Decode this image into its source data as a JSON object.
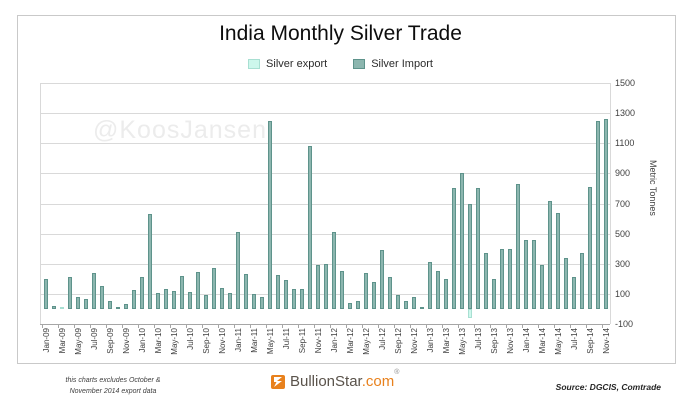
{
  "title": "India Monthly Silver Trade",
  "watermark": "@KoosJansen",
  "legend": {
    "export_label": "Silver export",
    "import_label": "Silver Import"
  },
  "y_axis": {
    "title": "Metric Tonnes",
    "ticks": [
      1500,
      1300,
      1100,
      900,
      700,
      500,
      300,
      100,
      -100
    ]
  },
  "footer": {
    "note_line1": "this charts excludes October &",
    "note_line2": "November 2014 export data",
    "logo_text": "BullionStar",
    "logo_suffix": ".com",
    "logo_reg": "®",
    "source": "Source: DGCIS, Comtrade"
  },
  "colors": {
    "export_fill": "#cdf7ec",
    "export_edge": "#a8dfd2",
    "import_fill": "#8cb6af",
    "import_edge": "#5e938b",
    "gridline": "#d9d9d9",
    "axis": "#a6a6a6",
    "logo_orange": "#e8811d"
  },
  "chart_data": {
    "type": "bar",
    "title": "India Monthly Silver Trade",
    "ylabel": "Metric Tonnes",
    "ylim": [
      -100,
      1500
    ],
    "grid": true,
    "legend_position": "top",
    "x_tick_interval": 2,
    "categories": [
      "Jan-09",
      "Feb-09",
      "Mar-09",
      "Apr-09",
      "May-09",
      "Jun-09",
      "Jul-09",
      "Aug-09",
      "Sep-09",
      "Oct-09",
      "Nov-09",
      "Dec-09",
      "Jan-10",
      "Feb-10",
      "Mar-10",
      "Apr-10",
      "May-10",
      "Jun-10",
      "Jul-10",
      "Aug-10",
      "Sep-10",
      "Oct-10",
      "Nov-10",
      "Dec-10",
      "Jan-11",
      "Feb-11",
      "Mar-11",
      "Apr-11",
      "May-11",
      "Jun-11",
      "Jul-11",
      "Aug-11",
      "Sep-11",
      "Oct-11",
      "Nov-11",
      "Dec-11",
      "Jan-12",
      "Feb-12",
      "Mar-12",
      "Apr-12",
      "May-12",
      "Jun-12",
      "Jul-12",
      "Aug-12",
      "Sep-12",
      "Oct-12",
      "Nov-12",
      "Dec-12",
      "Jan-13",
      "Feb-13",
      "Mar-13",
      "Apr-13",
      "May-13",
      "Jun-13",
      "Jul-13",
      "Aug-13",
      "Sep-13",
      "Oct-13",
      "Nov-13",
      "Dec-13",
      "Jan-14",
      "Feb-14",
      "Mar-14",
      "Apr-14",
      "May-14",
      "Jun-14",
      "Jul-14",
      "Aug-14",
      "Sep-14",
      "Oct-14",
      "Nov-14"
    ],
    "series": [
      {
        "name": "Silver export",
        "color": "#cdf7ec",
        "edge": "#a8dfd2",
        "values": [
          0,
          0,
          10,
          0,
          0,
          0,
          0,
          0,
          0,
          0,
          0,
          0,
          0,
          0,
          0,
          0,
          0,
          0,
          0,
          0,
          0,
          0,
          0,
          0,
          0,
          0,
          0,
          0,
          0,
          0,
          0,
          0,
          0,
          0,
          0,
          0,
          0,
          0,
          0,
          0,
          0,
          0,
          0,
          0,
          0,
          0,
          0,
          0,
          0,
          0,
          0,
          0,
          0,
          -60,
          0,
          0,
          0,
          0,
          0,
          0,
          0,
          0,
          0,
          0,
          0,
          0,
          0,
          0,
          0,
          0,
          0
        ]
      },
      {
        "name": "Silver Import",
        "color": "#8cb6af",
        "edge": "#5e938b",
        "values": [
          200,
          20,
          0,
          210,
          80,
          65,
          240,
          150,
          55,
          15,
          35,
          125,
          215,
          630,
          105,
          130,
          120,
          220,
          110,
          245,
          95,
          270,
          140,
          105,
          510,
          230,
          100,
          80,
          1250,
          225,
          190,
          135,
          135,
          1085,
          295,
          300,
          510,
          255,
          40,
          50,
          240,
          180,
          390,
          215,
          90,
          55,
          80,
          15,
          310,
          250,
          200,
          800,
          900,
          700,
          800,
          370,
          200,
          400,
          400,
          830,
          460,
          460,
          290,
          720,
          640,
          340,
          210,
          370,
          810,
          1250,
          1260
        ]
      }
    ]
  }
}
